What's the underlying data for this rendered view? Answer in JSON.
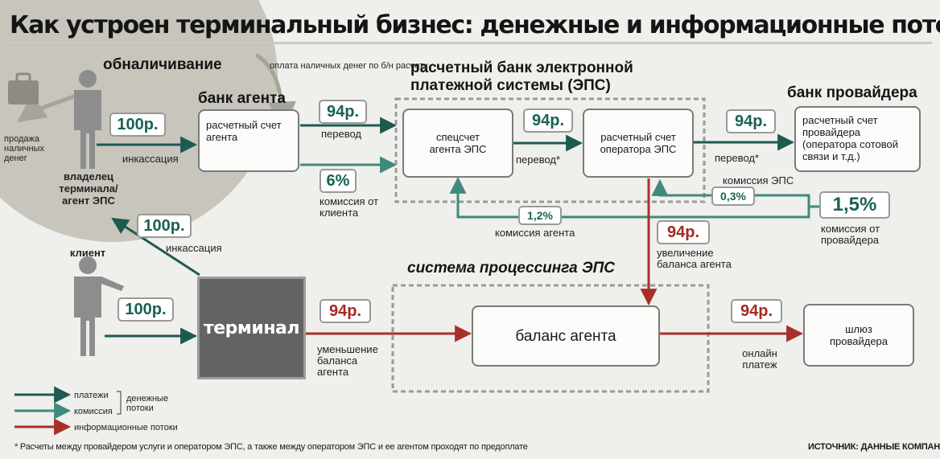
{
  "title": "Как устроен терминальный бизнес: денежные и информационные потоки",
  "headings": {
    "cashout": "обналичивание",
    "agent_bank": "банк агента",
    "eps_bank_line1": "расчетный банк электронной",
    "eps_bank_line2": "платежной системы (ЭПС)",
    "provider_bank": "банк провайдера",
    "processing": "система процессинга ЭПС"
  },
  "nodes": {
    "owner": "владелец терминала/ агент ЭПС",
    "client": "клиент",
    "terminal": "терминал",
    "agent_account": "расчетный счет агента",
    "eps_special": "спецсчет агента ЭПС",
    "operator_account": "расчетный счет оператора ЭПС",
    "provider_account": "расчетный счет провайдера (оператора сотовой связи и т.д.)",
    "agent_balance": "баланс агента",
    "provider_gateway": "шлюз провайдера"
  },
  "amounts": {
    "collection_to_bank": "100р.",
    "collection_from_terminal": "100р.",
    "client_payment": "100р.",
    "transfer_to_eps": "94р.",
    "transfer_to_operator": "94р.",
    "transfer_to_provider": "94р.",
    "client_commission": "6%",
    "eps_commission": "0,3%",
    "agent_commission": "1,2%",
    "provider_commission": "1,5%",
    "balance_increase": "94р.",
    "balance_decrease": "94р.",
    "online_payment": "94р."
  },
  "labels": {
    "cash_sale": "продажа наличных денег",
    "noncash_payment": "оплата наличных денег по б/н расчету",
    "collection_top": "инкассация",
    "collection_terminal": "инкассация",
    "transfer1": "перевод",
    "transfer2": "перевод*",
    "transfer3": "перевод*",
    "client_commission": "комиссия от клиента",
    "eps_commission": "комиссия ЭПС",
    "agent_commission": "комиссия агента",
    "provider_commission": "комиссия от провайдера",
    "balance_increase": "увеличение баланса агента",
    "balance_decrease": "уменьшение баланса агента",
    "online_payment": "онлайн платеж"
  },
  "legend": {
    "payments": "платежи",
    "commission": "комиссия",
    "money_flows": "денежные потоки",
    "info_flows": "информационные потоки"
  },
  "footnote": "* Расчеты между провайдером услуги и оператором ЭПС, а также между оператором ЭПС и ее агентом проходят по предоплате",
  "source": "ИСТОЧНИК: ДАННЫЕ КОМПАНИЙ",
  "icons": [
    "person-icon",
    "briefcase-icon"
  ],
  "colors": {
    "payments": "#1e5a52",
    "commission": "#3f8a7b",
    "info": "#a8302a",
    "terminal": "#636363"
  }
}
